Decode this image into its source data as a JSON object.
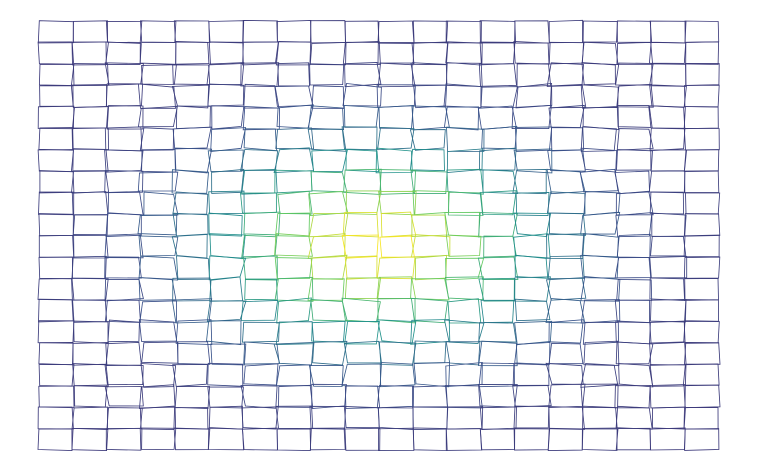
{
  "chart_data": {
    "type": "heatmap",
    "subtype": "distorted-mesh-wireframe",
    "title": "",
    "xlabel": "",
    "ylabel": "",
    "grid": false,
    "axes_visible": false,
    "legend": "none",
    "columns": 20,
    "rows": 20,
    "colormap": [
      "#440154",
      "#3b528b",
      "#21918c",
      "#5ec962",
      "#fde725"
    ],
    "field": {
      "description_free": true,
      "peak_value": 1.0,
      "edge_value": 0.18,
      "peak_column": 10,
      "peak_row": 10.5,
      "spread_x": 4.6,
      "spread_y": 4.2
    },
    "jitter_scale": 0.09
  }
}
